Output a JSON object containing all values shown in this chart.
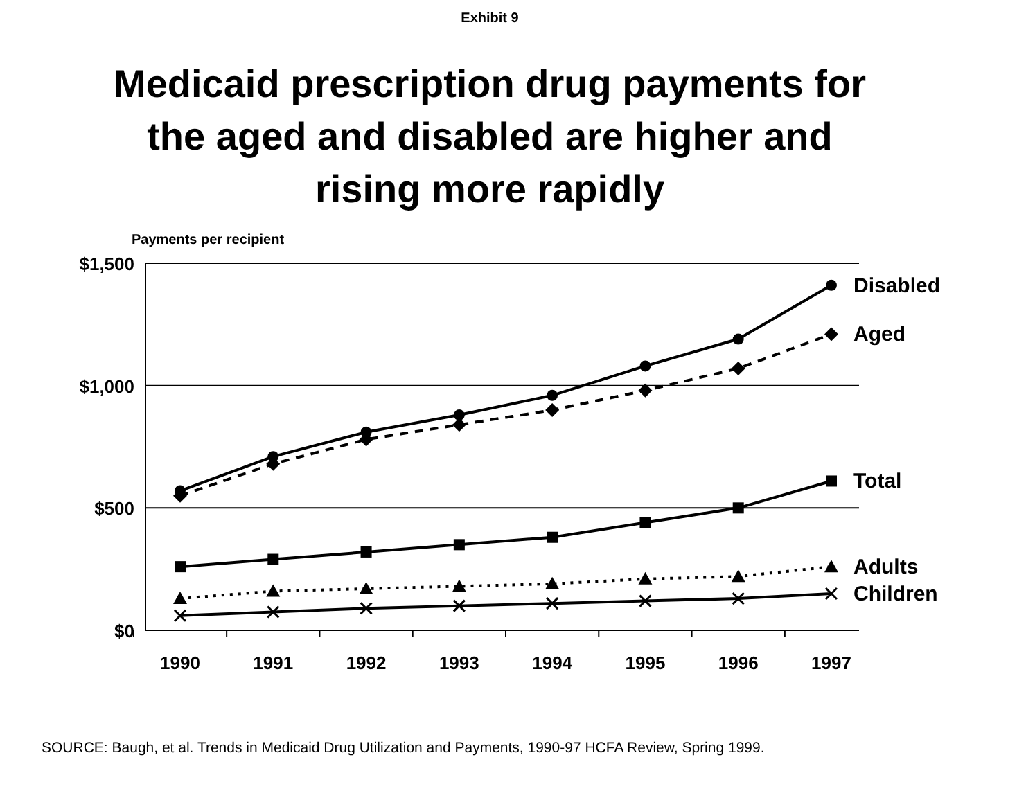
{
  "chart_data": {
    "type": "line",
    "subtitle": "Exhibit 9",
    "title": "Medicaid prescription drug payments for the aged and disabled are higher and rising more rapidly",
    "ylabel": "Payments per recipient",
    "categories": [
      "1990",
      "1991",
      "1992",
      "1993",
      "1994",
      "1995",
      "1996",
      "1997"
    ],
    "ylim": [
      0,
      1500
    ],
    "yticks": [
      {
        "value": 0,
        "label": "$0"
      },
      {
        "value": 500,
        "label": "$500"
      },
      {
        "value": 1000,
        "label": "$1,000"
      },
      {
        "value": 1500,
        "label": "$1,500"
      }
    ],
    "grid": "y",
    "series": [
      {
        "name": "Disabled",
        "color": "#000000",
        "marker": "circle",
        "line_style": "solid",
        "values": [
          570,
          710,
          810,
          880,
          960,
          1080,
          1190,
          1410
        ]
      },
      {
        "name": "Aged",
        "color": "#000000",
        "marker": "diamond",
        "line_style": "dashed",
        "values": [
          550,
          680,
          780,
          840,
          900,
          980,
          1070,
          1210
        ]
      },
      {
        "name": "Total",
        "color": "#000000",
        "marker": "square",
        "line_style": "solid",
        "values": [
          260,
          290,
          320,
          350,
          380,
          440,
          500,
          610
        ]
      },
      {
        "name": "Adults",
        "color": "#000000",
        "marker": "triangle",
        "line_style": "dotted",
        "values": [
          130,
          160,
          170,
          180,
          190,
          210,
          220,
          260
        ]
      },
      {
        "name": "Children",
        "color": "#000000",
        "marker": "cross",
        "line_style": "solid",
        "values": [
          60,
          75,
          90,
          100,
          110,
          120,
          130,
          150
        ]
      }
    ],
    "annotations": [
      "SOURCE: Baugh, et al.  Trends in Medicaid Drug Utilization and Payments, 1990-97 HCFA Review, Spring 1999."
    ]
  }
}
